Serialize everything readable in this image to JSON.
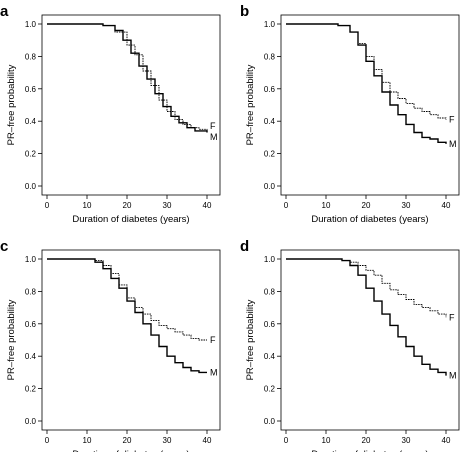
{
  "chart_data": [
    {
      "panel": "a",
      "type": "line",
      "step": true,
      "xlabel": "Duration of diabetes (years)",
      "ylabel": "PR–free probability",
      "xlim": [
        0,
        42
      ],
      "ylim": [
        0,
        1.0
      ],
      "xticks": [
        "0",
        "10",
        "20",
        "30",
        "40"
      ],
      "yticks": [
        "0.0",
        "0.2",
        "0.4",
        "0.6",
        "0.8",
        "1.0"
      ],
      "grid": false,
      "series": [
        {
          "name": "F",
          "x": [
            0,
            10,
            14,
            17,
            20,
            22,
            24,
            26,
            28,
            30,
            32,
            34,
            36,
            38,
            40
          ],
          "y": [
            1.0,
            1.0,
            0.99,
            0.95,
            0.87,
            0.81,
            0.71,
            0.62,
            0.53,
            0.46,
            0.41,
            0.38,
            0.36,
            0.35,
            0.34
          ]
        },
        {
          "name": "M",
          "x": [
            0,
            10,
            14,
            17,
            19,
            21,
            23,
            25,
            27,
            29,
            31,
            33,
            35,
            37,
            40
          ],
          "y": [
            1.0,
            1.0,
            0.99,
            0.96,
            0.9,
            0.82,
            0.74,
            0.66,
            0.57,
            0.49,
            0.43,
            0.39,
            0.36,
            0.34,
            0.33
          ]
        }
      ]
    },
    {
      "panel": "b",
      "type": "line",
      "step": true,
      "xlabel": "Duration of diabetes (years)",
      "ylabel": "PR–free probability",
      "xlim": [
        0,
        42
      ],
      "ylim": [
        0,
        1.0
      ],
      "xticks": [
        "0",
        "10",
        "20",
        "30",
        "40"
      ],
      "yticks": [
        "0.0",
        "0.2",
        "0.4",
        "0.6",
        "0.8",
        "1.0"
      ],
      "grid": false,
      "series": [
        {
          "name": "F",
          "x": [
            0,
            10,
            13,
            16,
            18,
            20,
            22,
            24,
            26,
            28,
            30,
            32,
            34,
            36,
            38,
            40
          ],
          "y": [
            1.0,
            1.0,
            0.99,
            0.95,
            0.88,
            0.8,
            0.72,
            0.64,
            0.58,
            0.54,
            0.51,
            0.48,
            0.46,
            0.44,
            0.42,
            0.41
          ]
        },
        {
          "name": "M",
          "x": [
            0,
            10,
            13,
            16,
            18,
            20,
            22,
            24,
            26,
            28,
            30,
            32,
            34,
            36,
            38,
            40
          ],
          "y": [
            1.0,
            1.0,
            0.99,
            0.95,
            0.87,
            0.77,
            0.68,
            0.58,
            0.5,
            0.44,
            0.38,
            0.33,
            0.3,
            0.29,
            0.27,
            0.26
          ]
        }
      ]
    },
    {
      "panel": "c",
      "type": "line",
      "step": true,
      "xlabel": "Duration of diabetes (years)",
      "ylabel": "PR–free probability",
      "xlim": [
        0,
        42
      ],
      "ylim": [
        0,
        1.0
      ],
      "xticks": [
        "0",
        "10",
        "20",
        "30",
        "40"
      ],
      "yticks": [
        "0.0",
        "0.2",
        "0.4",
        "0.6",
        "0.8",
        "1.0"
      ],
      "grid": false,
      "series": [
        {
          "name": "F",
          "x": [
            0,
            8,
            12,
            14,
            16,
            18,
            20,
            22,
            24,
            26,
            28,
            30,
            32,
            34,
            36,
            38,
            40
          ],
          "y": [
            1.0,
            1.0,
            0.99,
            0.96,
            0.91,
            0.84,
            0.76,
            0.7,
            0.66,
            0.62,
            0.59,
            0.57,
            0.55,
            0.53,
            0.51,
            0.5,
            0.5
          ]
        },
        {
          "name": "M",
          "x": [
            0,
            8,
            12,
            14,
            16,
            18,
            20,
            22,
            24,
            26,
            28,
            30,
            32,
            34,
            36,
            38,
            40
          ],
          "y": [
            1.0,
            1.0,
            0.98,
            0.94,
            0.88,
            0.82,
            0.74,
            0.67,
            0.6,
            0.53,
            0.46,
            0.4,
            0.36,
            0.33,
            0.31,
            0.3,
            0.3
          ]
        }
      ]
    },
    {
      "panel": "d",
      "type": "line",
      "step": true,
      "xlabel": "Duration of diabetes (years)",
      "ylabel": "PR–free probability",
      "xlim": [
        0,
        42
      ],
      "ylim": [
        0,
        1.0
      ],
      "xticks": [
        "0",
        "10",
        "20",
        "30",
        "40"
      ],
      "yticks": [
        "0.0",
        "0.2",
        "0.4",
        "0.6",
        "0.8",
        "1.0"
      ],
      "grid": false,
      "series": [
        {
          "name": "F",
          "x": [
            0,
            10,
            14,
            16,
            18,
            20,
            22,
            24,
            26,
            28,
            30,
            32,
            34,
            36,
            38,
            40
          ],
          "y": [
            1.0,
            1.0,
            0.99,
            0.98,
            0.96,
            0.93,
            0.9,
            0.85,
            0.81,
            0.78,
            0.75,
            0.72,
            0.7,
            0.68,
            0.66,
            0.64
          ]
        },
        {
          "name": "M",
          "x": [
            0,
            10,
            14,
            16,
            18,
            20,
            22,
            24,
            26,
            28,
            30,
            32,
            34,
            36,
            38,
            40
          ],
          "y": [
            1.0,
            1.0,
            0.99,
            0.96,
            0.9,
            0.82,
            0.74,
            0.66,
            0.59,
            0.52,
            0.46,
            0.4,
            0.35,
            0.32,
            0.3,
            0.28
          ]
        }
      ]
    }
  ]
}
